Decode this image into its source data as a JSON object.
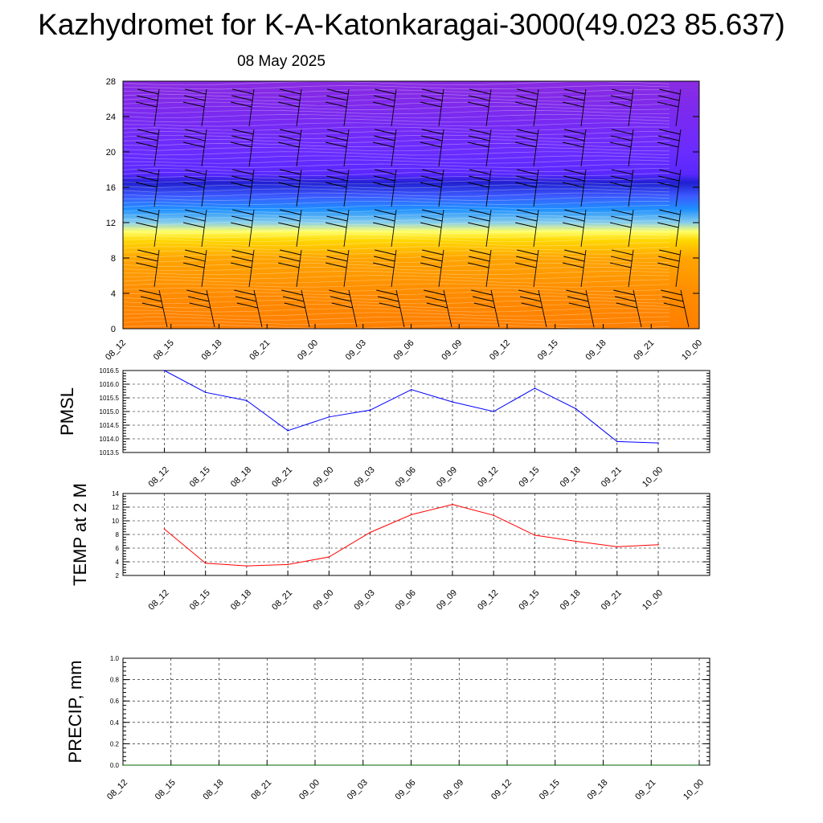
{
  "title": "Kazhydromet for K-A-Katonkaragai-3000(49.023 85.637)",
  "subtitle": "08 May 2025",
  "colors": {
    "pmsl_line": "#0000ff",
    "temp_line": "#ff0000",
    "precip_line": "#006400",
    "grid": "#000000"
  },
  "chart_data": [
    {
      "id": "vertical-section",
      "type": "heatmap",
      "x_ticks": [
        "08_12",
        "08_15",
        "08_18",
        "08_21",
        "09_00",
        "09_03",
        "09_06",
        "09_09",
        "09_12",
        "09_15",
        "09_18",
        "09_21",
        "10_00"
      ],
      "y_ticks": [
        "0",
        "4",
        "8",
        "12",
        "16",
        "20",
        "24",
        "28"
      ],
      "ylim": [
        0,
        28
      ],
      "color_bands": [
        {
          "level": 0,
          "color": "#ff7f00"
        },
        {
          "level": 4,
          "color": "#ff8c00"
        },
        {
          "level": 8,
          "color": "#ffa500"
        },
        {
          "level": 10,
          "color": "#ffd700"
        },
        {
          "level": 11,
          "color": "#ffff66"
        },
        {
          "level": 12,
          "color": "#87ceeb"
        },
        {
          "level": 13.5,
          "color": "#1e90ff"
        },
        {
          "level": 15,
          "color": "#3c5aff"
        },
        {
          "level": 16.5,
          "color": "#2020d0"
        },
        {
          "level": 17.5,
          "color": "#5a28ff"
        },
        {
          "level": 20,
          "color": "#6a2cff"
        },
        {
          "level": 24,
          "color": "#7a2af0"
        },
        {
          "level": 28,
          "color": "#8a2be2"
        }
      ],
      "wind_barbs": "present"
    },
    {
      "id": "pmsl",
      "type": "line",
      "ylabel": "PMSL",
      "x": [
        "08_12",
        "08_15",
        "08_18",
        "08_21",
        "09_00",
        "09_03",
        "09_06",
        "09_09",
        "09_12",
        "09_15",
        "09_18",
        "09_21",
        "10_00"
      ],
      "values": [
        1016.5,
        1015.7,
        1015.4,
        1014.3,
        1014.8,
        1015.05,
        1015.8,
        1015.35,
        1015.0,
        1015.85,
        1015.1,
        1013.9,
        1013.85
      ],
      "y_ticks": [
        "1013.5",
        "1014.0",
        "1014.5",
        "1015.0",
        "1015.5",
        "1016.0",
        "1016.5"
      ],
      "ylim": [
        1013.5,
        1016.5
      ]
    },
    {
      "id": "temp",
      "type": "line",
      "ylabel": "TEMP at 2 M",
      "x": [
        "08_12",
        "08_15",
        "08_18",
        "08_21",
        "09_00",
        "09_03",
        "09_06",
        "09_09",
        "09_12",
        "09_15",
        "09_18",
        "09_21",
        "10_00"
      ],
      "values": [
        8.8,
        3.8,
        3.4,
        3.6,
        4.7,
        8.3,
        10.9,
        12.4,
        10.8,
        7.9,
        7.0,
        6.2,
        6.5
      ],
      "y_ticks": [
        "2",
        "4",
        "6",
        "8",
        "10",
        "12",
        "14"
      ],
      "ylim": [
        2,
        14
      ]
    },
    {
      "id": "precip",
      "type": "line",
      "ylabel": "PRECIP, mm",
      "x": [
        "08_12",
        "08_15",
        "08_18",
        "08_21",
        "09_00",
        "09_03",
        "09_06",
        "09_09",
        "09_12",
        "09_15",
        "09_18",
        "09_21",
        "10_00"
      ],
      "values": [
        0,
        0,
        0,
        0,
        0,
        0,
        0,
        0,
        0,
        0,
        0,
        0,
        0
      ],
      "y_ticks": [
        "0.0",
        "0.2",
        "0.4",
        "0.6",
        "0.8",
        "1.0"
      ],
      "ylim": [
        0,
        1
      ]
    }
  ]
}
